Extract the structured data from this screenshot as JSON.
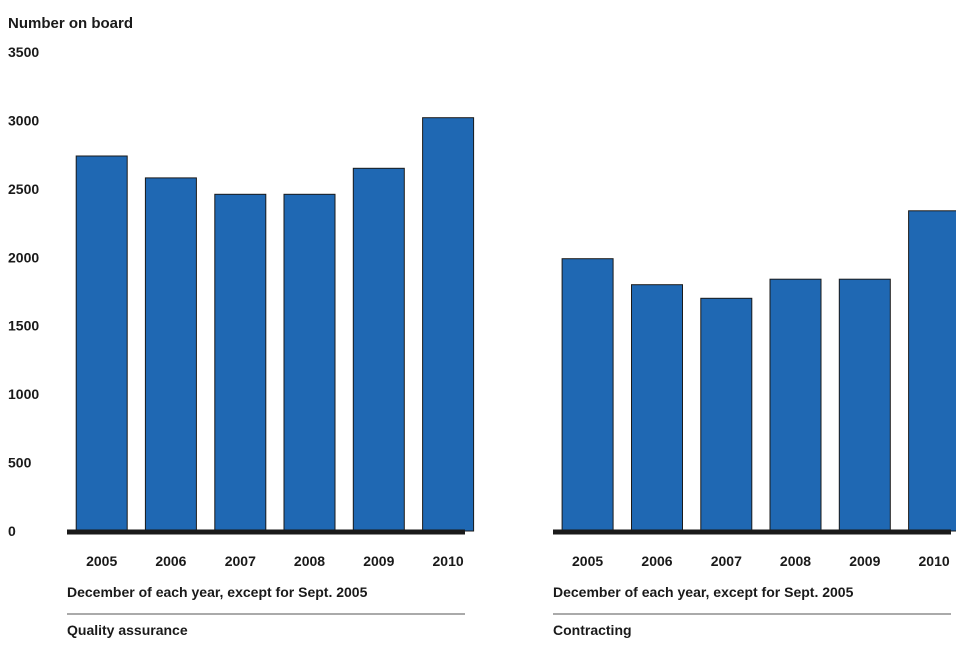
{
  "chart_data": [
    {
      "type": "bar",
      "title": "Quality assurance",
      "ylabel": "Number on board",
      "xlabel": "December of each year, except for Sept. 2005",
      "categories": [
        "2005",
        "2006",
        "2007",
        "2008",
        "2009",
        "2010"
      ],
      "values": [
        2740,
        2580,
        2460,
        2460,
        2650,
        3020
      ],
      "ylim": [
        0,
        3500
      ],
      "yticks": [
        "0",
        "500",
        "1000",
        "1500",
        "2000",
        "2500",
        "3000",
        "3500"
      ],
      "grid": false,
      "bar_color": "#1f68b3"
    },
    {
      "type": "bar",
      "title": "Contracting",
      "xlabel": "December of each year, except for Sept. 2005",
      "categories": [
        "2005",
        "2006",
        "2007",
        "2008",
        "2009",
        "2010"
      ],
      "values": [
        1990,
        1800,
        1700,
        1840,
        1840,
        2340
      ],
      "ylim": [
        0,
        3500
      ],
      "grid": false,
      "bar_color": "#1f68b3"
    }
  ]
}
